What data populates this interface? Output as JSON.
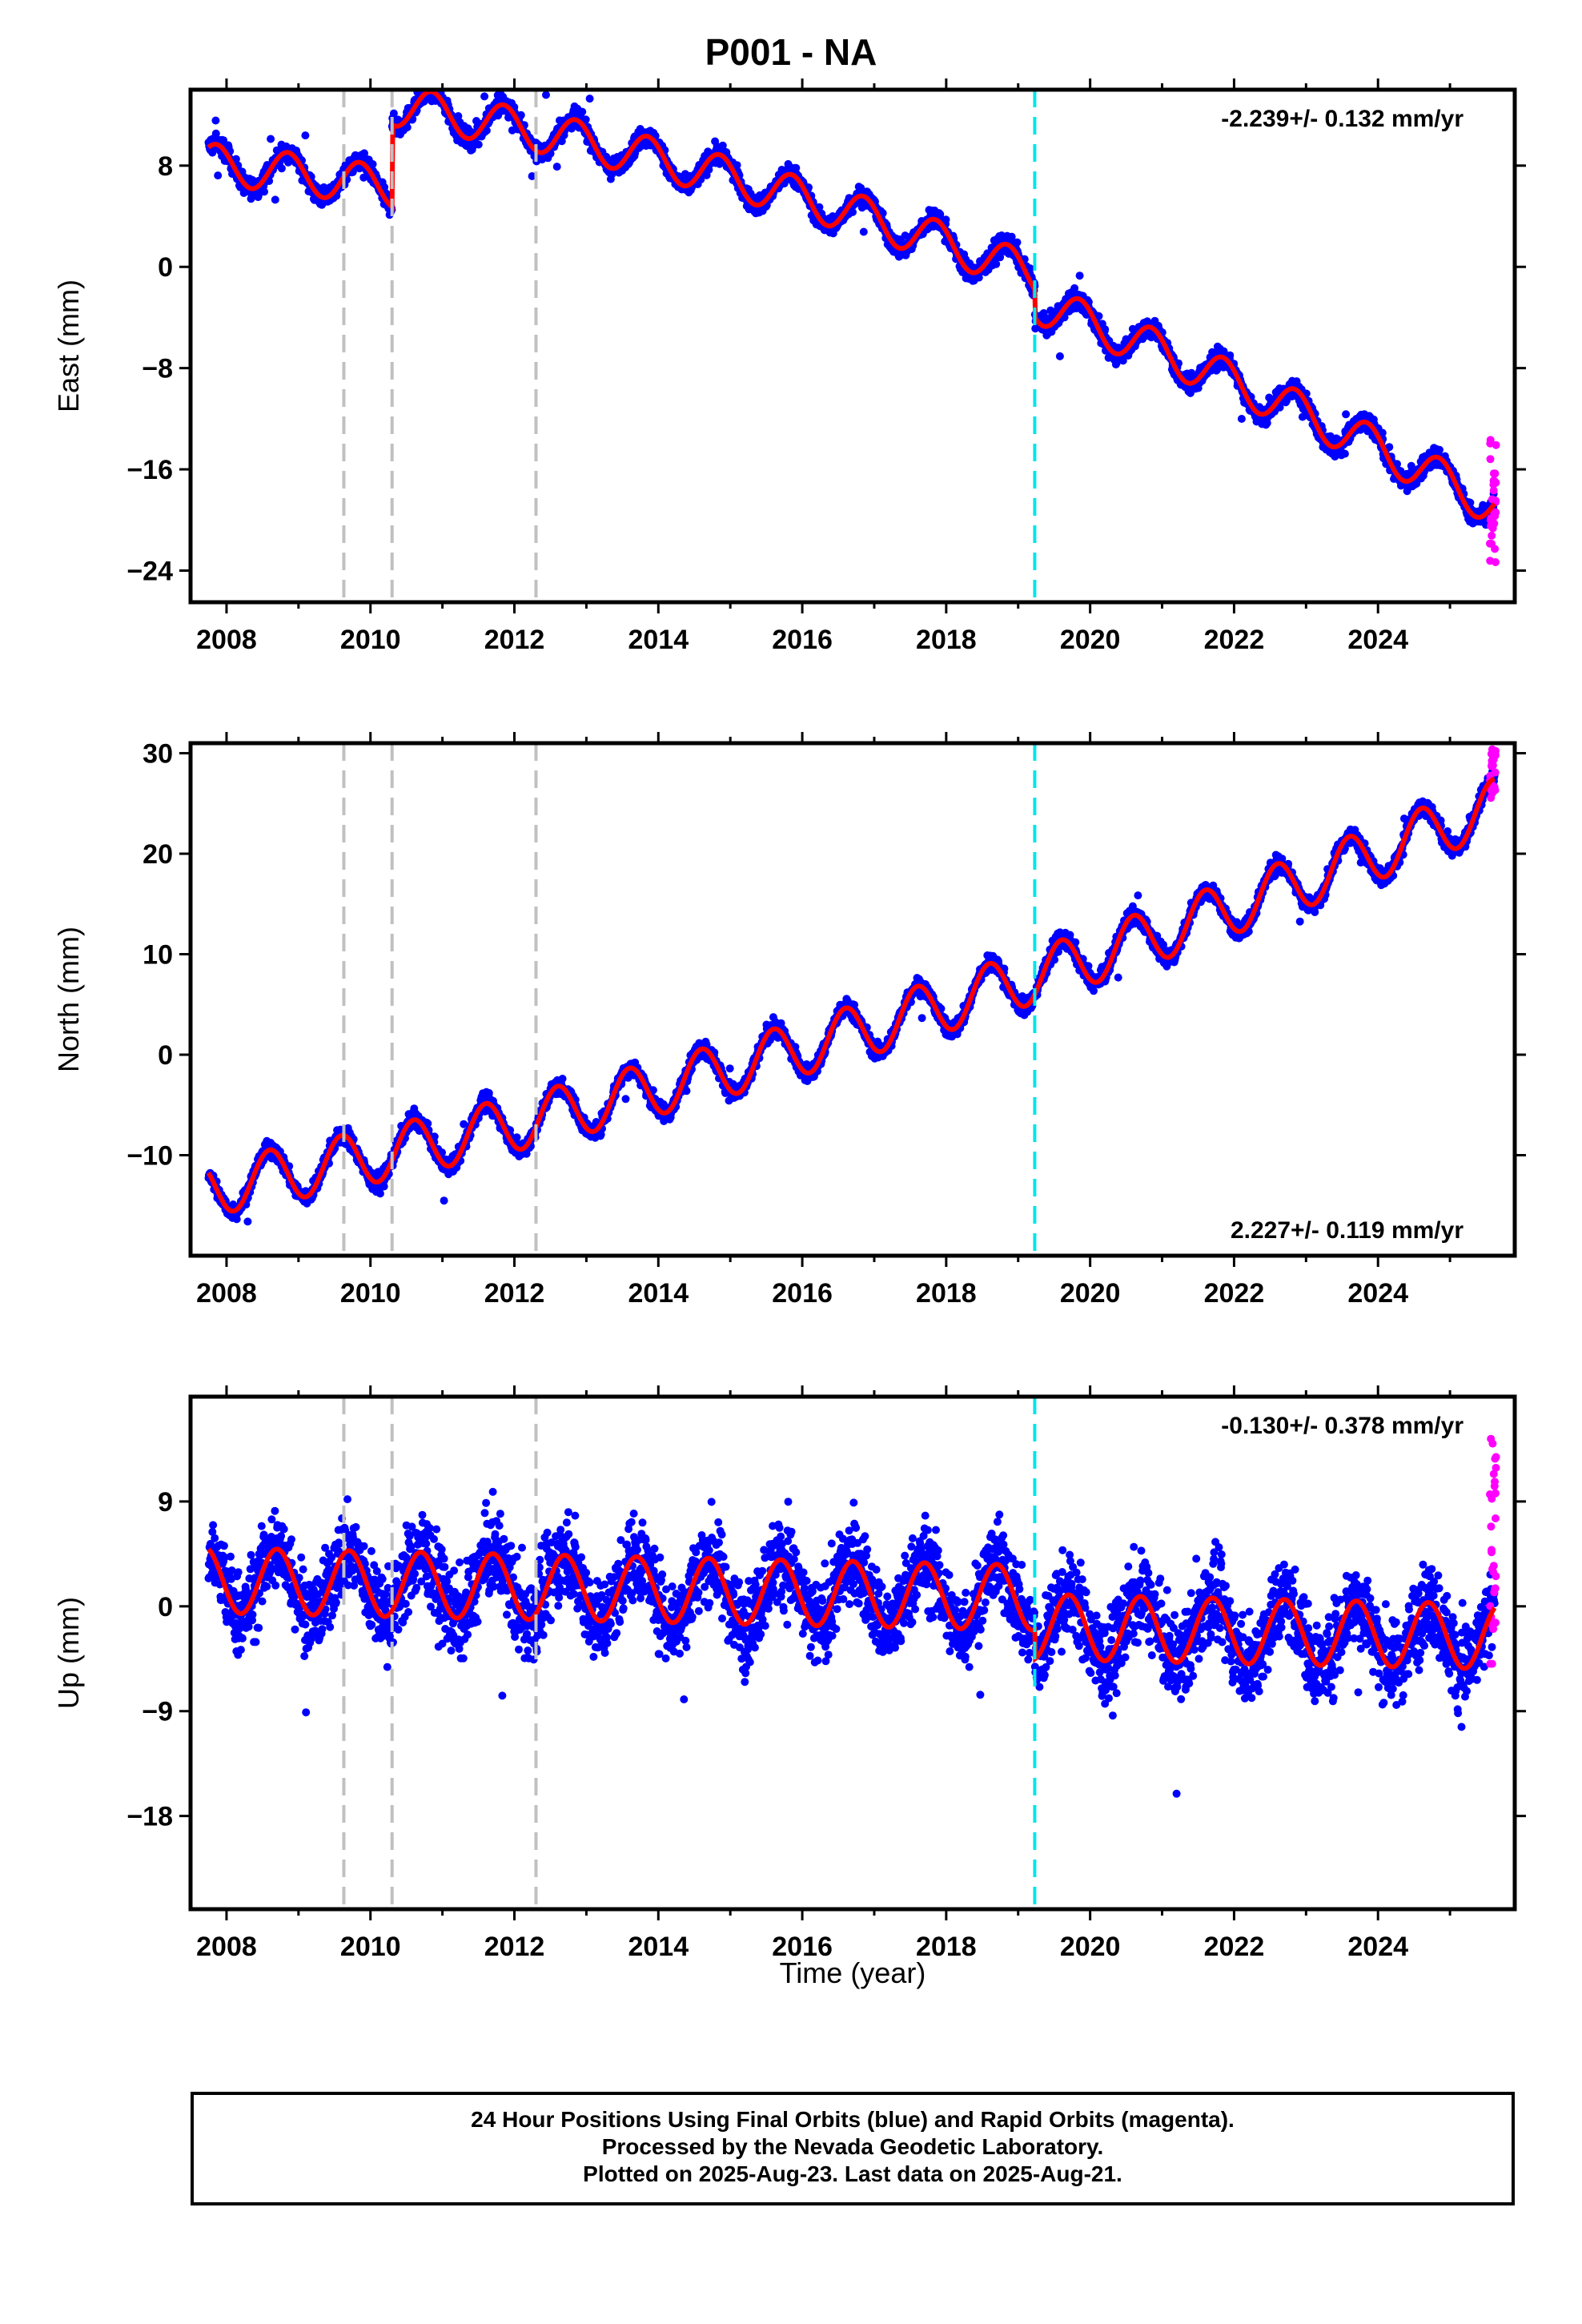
{
  "title": "P001 - NA",
  "xlabel": "Time (year)",
  "footer": {
    "line1": "24 Hour Positions Using Final Orbits (blue) and Rapid Orbits (magenta).",
    "line2": "Processed by the Nevada Geodetic Laboratory.",
    "line3": "Plotted on 2025-Aug-23. Last data on 2025-Aug-21."
  },
  "colors": {
    "final_orbits": "#0000ff",
    "rapid_orbits": "#ff00ff",
    "model": "#ff0000",
    "gray_lines": "#c0c0c0",
    "cyan_line": "#00e5ee"
  },
  "chart_data": [
    {
      "type": "scatter",
      "ylabel": "East (mm)",
      "rate_text": "-2.239+/- 0.132 mm/yr",
      "rate_position": "top-right",
      "xlim": [
        2007.5,
        2025.9
      ],
      "ylim": [
        -26.5,
        14
      ],
      "x_ticks": [
        2008,
        2010,
        2012,
        2014,
        2016,
        2018,
        2020,
        2022,
        2024
      ],
      "y_ticks": [
        8,
        0,
        -8,
        -16,
        -24
      ],
      "y_tick_labels": [
        "8",
        "0",
        "−8",
        "−16",
        "−24"
      ],
      "gray_dashed_lines": [
        2009.63,
        2010.3,
        2012.3
      ],
      "cyan_dashed_lines": [
        2019.23
      ],
      "model": {
        "start": 2007.75,
        "end": 2025.62,
        "offset": 8,
        "rate": -0.6,
        "quad": -0.0665,
        "amp": 1.6,
        "phase": 0.6,
        "steps": [
          {
            "t": 2010.3,
            "dy": 6.5
          },
          {
            "t": 2019.23,
            "dy": -2.2
          }
        ],
        "spread": 1.0
      },
      "rapid": {
        "start": 2025.55,
        "end": 2025.64,
        "y_min": -23.5,
        "y_max": -12.5
      }
    },
    {
      "type": "scatter",
      "ylabel": "North (mm)",
      "rate_text": "2.227+/- 0.119 mm/yr",
      "rate_position": "bottom-right",
      "xlim": [
        2007.5,
        2025.9
      ],
      "ylim": [
        -20,
        31
      ],
      "x_ticks": [
        2008,
        2010,
        2012,
        2014,
        2016,
        2018,
        2020,
        2022,
        2024
      ],
      "y_ticks": [
        30,
        20,
        10,
        0,
        -10
      ],
      "y_tick_labels": [
        "30",
        "20",
        "10",
        "0",
        "−10"
      ],
      "gray_dashed_lines": [
        2009.63,
        2010.3,
        2012.3
      ],
      "cyan_dashed_lines": [
        2019.23
      ],
      "model": {
        "start": 2007.75,
        "end": 2025.62,
        "offset": -13,
        "rate": 1.35,
        "quad": 0.045,
        "amp": 2.7,
        "phase": 0.35,
        "steps": [],
        "spread": 1.1
      },
      "rapid": {
        "start": 2025.55,
        "end": 2025.64,
        "y_min": 25.5,
        "y_max": 30.5
      }
    },
    {
      "type": "scatter",
      "ylabel": "Up (mm)",
      "rate_text": "-0.130+/- 0.378 mm/yr",
      "rate_position": "top-right",
      "xlim": [
        2007.5,
        2025.9
      ],
      "ylim": [
        -26,
        18
      ],
      "x_ticks": [
        2008,
        2010,
        2012,
        2014,
        2016,
        2018,
        2020,
        2022,
        2024
      ],
      "y_ticks": [
        9,
        0,
        -9,
        -18
      ],
      "y_tick_labels": [
        "9",
        "0",
        "−9",
        "−18"
      ],
      "gray_dashed_lines": [
        2009.63,
        2010.3,
        2012.3
      ],
      "cyan_dashed_lines": [
        2019.23
      ],
      "model": {
        "start": 2007.75,
        "end": 2025.62,
        "offset": 2.2,
        "rate": -0.13,
        "quad": 0,
        "amp": 2.8,
        "phase": 0.45,
        "steps": [
          {
            "t": 2019.23,
            "dy": -2.5
          }
        ],
        "spread": 3.2
      },
      "rapid": {
        "start": 2025.55,
        "end": 2025.64,
        "y_min": -6,
        "y_max": 17
      }
    }
  ]
}
